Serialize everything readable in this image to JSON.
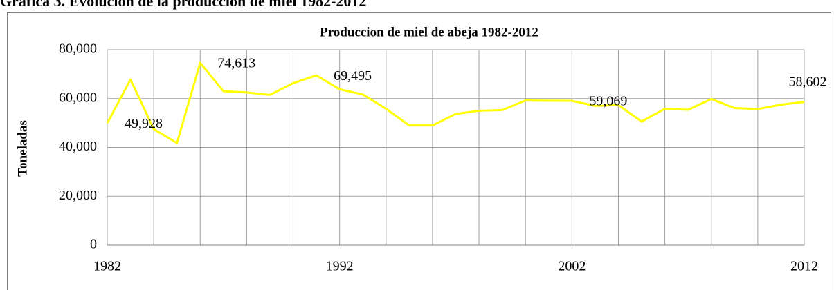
{
  "heading": "Gráfica 3. Evolución de la producción de miel 1982-2012",
  "chart_data": {
    "type": "line",
    "title": "Produccion de miel de abeja  1982-2012",
    "y_label": "Toneladas",
    "x": [
      1982,
      1983,
      1984,
      1985,
      1986,
      1987,
      1988,
      1989,
      1990,
      1991,
      1992,
      1993,
      1994,
      1995,
      1996,
      1997,
      1998,
      1999,
      2000,
      2001,
      2002,
      2003,
      2004,
      2005,
      2006,
      2007,
      2008,
      2009,
      2010,
      2011,
      2012
    ],
    "series": [
      {
        "name": "Produccion",
        "color": "#ffff00",
        "values": [
          49928,
          67800,
          47500,
          41800,
          74613,
          63000,
          62500,
          61500,
          66300,
          69495,
          63800,
          61700,
          55800,
          49000,
          49000,
          53700,
          55000,
          55300,
          59200,
          59100,
          59069,
          57000,
          57300,
          50600,
          55800,
          55400,
          59800,
          56100,
          55700,
          57500,
          58602
        ],
        "value_labels": [
          "49,928",
          null,
          null,
          null,
          "74,613",
          null,
          null,
          null,
          null,
          "69,495",
          null,
          null,
          null,
          null,
          null,
          null,
          null,
          null,
          null,
          null,
          "59,069",
          null,
          null,
          null,
          null,
          null,
          null,
          null,
          null,
          null,
          "58,602"
        ]
      }
    ],
    "xlim": [
      1982,
      2012
    ],
    "xticks": [
      1982,
      1992,
      2002,
      2012
    ],
    "xgrid": [
      1982,
      1984,
      1986,
      1988,
      1990,
      1992,
      1994,
      1996,
      1998,
      2000,
      2002,
      2004,
      2006,
      2008,
      2010,
      2012
    ],
    "ylim": [
      0,
      80000
    ],
    "yticks": [
      0,
      {
        "value": 20000,
        "label": "20,000"
      },
      {
        "value": 40000,
        "label": "40,000"
      },
      {
        "value": 60000,
        "label": "60,000"
      },
      {
        "value": 80000,
        "label": "80,000"
      }
    ],
    "grid": true
  }
}
